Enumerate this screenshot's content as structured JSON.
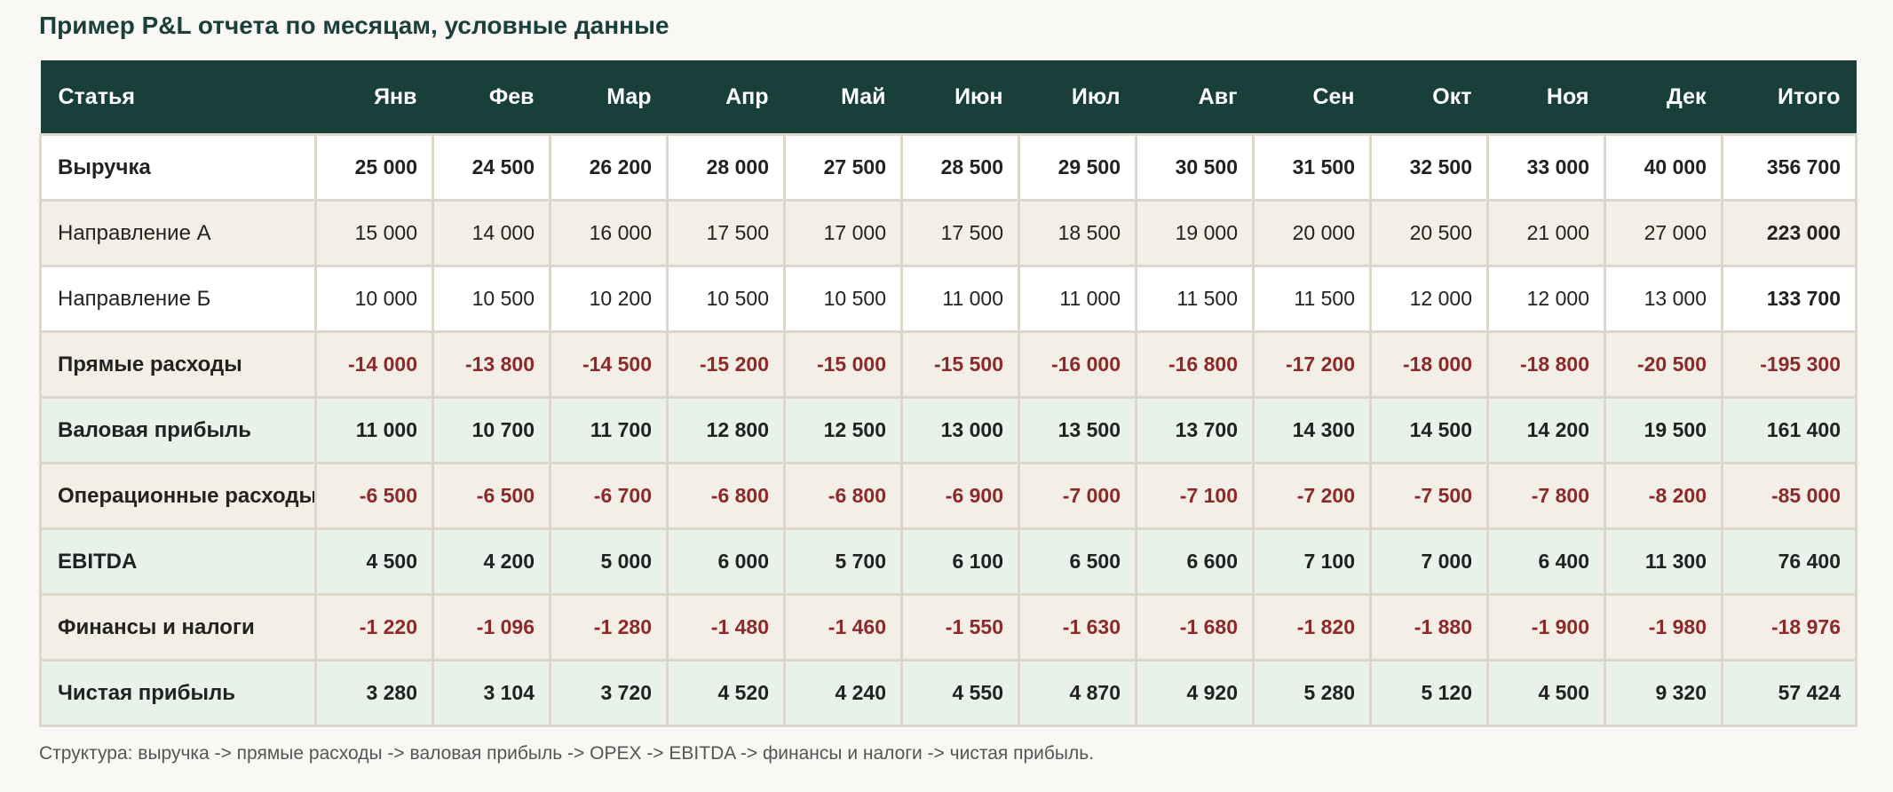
{
  "title": "Пример P&L отчета по месяцам, условные данные",
  "headers": [
    "Статья",
    "Янв",
    "Фев",
    "Мар",
    "Апр",
    "Май",
    "Июн",
    "Июл",
    "Авг",
    "Сен",
    "Окт",
    "Ноя",
    "Дек",
    "Итого"
  ],
  "rows": [
    {
      "label": "Выручка",
      "style": "white bold",
      "values": [
        "25 000",
        "24 500",
        "26 200",
        "28 000",
        "27 500",
        "28 500",
        "29 500",
        "30 500",
        "31 500",
        "32 500",
        "33 000",
        "40 000",
        "356 700"
      ]
    },
    {
      "label": "Направление А",
      "style": "beige",
      "values": [
        "15 000",
        "14 000",
        "16 000",
        "17 500",
        "17 000",
        "17 500",
        "18 500",
        "19 000",
        "20 000",
        "20 500",
        "21 000",
        "27 000",
        "223 000"
      ]
    },
    {
      "label": "Направление Б",
      "style": "white",
      "values": [
        "10 000",
        "10 500",
        "10 200",
        "10 500",
        "10 500",
        "11 000",
        "11 000",
        "11 500",
        "11 500",
        "12 000",
        "12 000",
        "13 000",
        "133 700"
      ]
    },
    {
      "label": "Прямые расходы",
      "style": "beige bold neg",
      "values": [
        "-14 000",
        "-13 800",
        "-14 500",
        "-15 200",
        "-15 000",
        "-15 500",
        "-16 000",
        "-16 800",
        "-17 200",
        "-18 000",
        "-18 800",
        "-20 500",
        "-195 300"
      ]
    },
    {
      "label": "Валовая прибыль",
      "style": "green bold",
      "values": [
        "11 000",
        "10 700",
        "11 700",
        "12 800",
        "12 500",
        "13 000",
        "13 500",
        "13 700",
        "14 300",
        "14 500",
        "14 200",
        "19 500",
        "161 400"
      ]
    },
    {
      "label": "Операционные расходы",
      "style": "beige bold neg",
      "values": [
        "-6 500",
        "-6 500",
        "-6 700",
        "-6 800",
        "-6 800",
        "-6 900",
        "-7 000",
        "-7 100",
        "-7 200",
        "-7 500",
        "-7 800",
        "-8 200",
        "-85 000"
      ]
    },
    {
      "label": "EBITDA",
      "style": "green bold",
      "values": [
        "4 500",
        "4 200",
        "5 000",
        "6 000",
        "5 700",
        "6 100",
        "6 500",
        "6 600",
        "7 100",
        "7 000",
        "6 400",
        "11 300",
        "76 400"
      ]
    },
    {
      "label": "Финансы и налоги",
      "style": "beige bold neg",
      "values": [
        "-1 220",
        "-1 096",
        "-1 280",
        "-1 480",
        "-1 460",
        "-1 550",
        "-1 630",
        "-1 680",
        "-1 820",
        "-1 880",
        "-1 900",
        "-1 980",
        "-18 976"
      ]
    },
    {
      "label": "Чистая прибыль",
      "style": "green bold",
      "values": [
        "3 280",
        "3 104",
        "3 720",
        "4 520",
        "4 240",
        "4 550",
        "4 870",
        "4 920",
        "5 280",
        "5 120",
        "4 500",
        "9 320",
        "57 424"
      ]
    }
  ],
  "footnote": "Структура: выручка -> прямые расходы -> валовая прибыль -> OPEX -> EBITDA -> финансы и налоги -> чистая прибыль."
}
